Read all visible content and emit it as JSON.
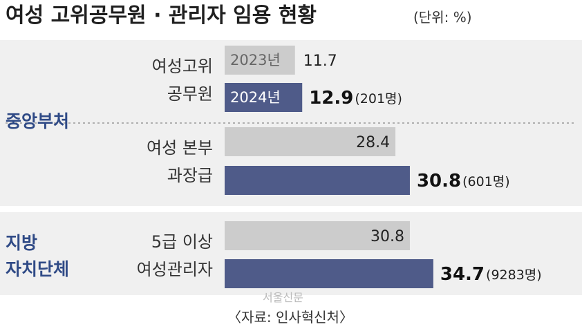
{
  "header": {
    "title": "여성 고위공무원 · 관리자 임용 현황",
    "unit": "(단위: %)"
  },
  "legend": {
    "y2023": "2023년",
    "y2024": "2024년"
  },
  "colors": {
    "bar2023": "#cccccc",
    "bar2024": "#4f5b89",
    "panel": "#f0f0f0",
    "group_label": "#2f4a86"
  },
  "chart_data": {
    "type": "bar",
    "orientation": "horizontal",
    "series": [
      {
        "name": "2023년",
        "values": [
          11.7,
          28.4,
          30.8
        ]
      },
      {
        "name": "2024년",
        "values": [
          12.9,
          30.8,
          34.7
        ]
      }
    ],
    "groups": [
      {
        "label": "중앙부처",
        "items": [
          {
            "label_lines": [
              "여성고위",
              "공무원"
            ],
            "v2023": 11.7,
            "v2024": 12.9,
            "v2024_note": "(201명)"
          },
          {
            "label_lines": [
              "여성 본부",
              "과장급"
            ],
            "v2023": 28.4,
            "v2024": 30.8,
            "v2024_note": "(601명)"
          }
        ]
      },
      {
        "label_lines": [
          "지방",
          "자치단체"
        ],
        "items": [
          {
            "label_lines": [
              "5급 이상",
              "여성관리자"
            ],
            "v2023": 30.8,
            "v2024": 34.7,
            "v2024_note": "(9283명)"
          }
        ]
      }
    ]
  },
  "source": "〈자료: 인사혁신처〉",
  "watermark": "서울신문"
}
